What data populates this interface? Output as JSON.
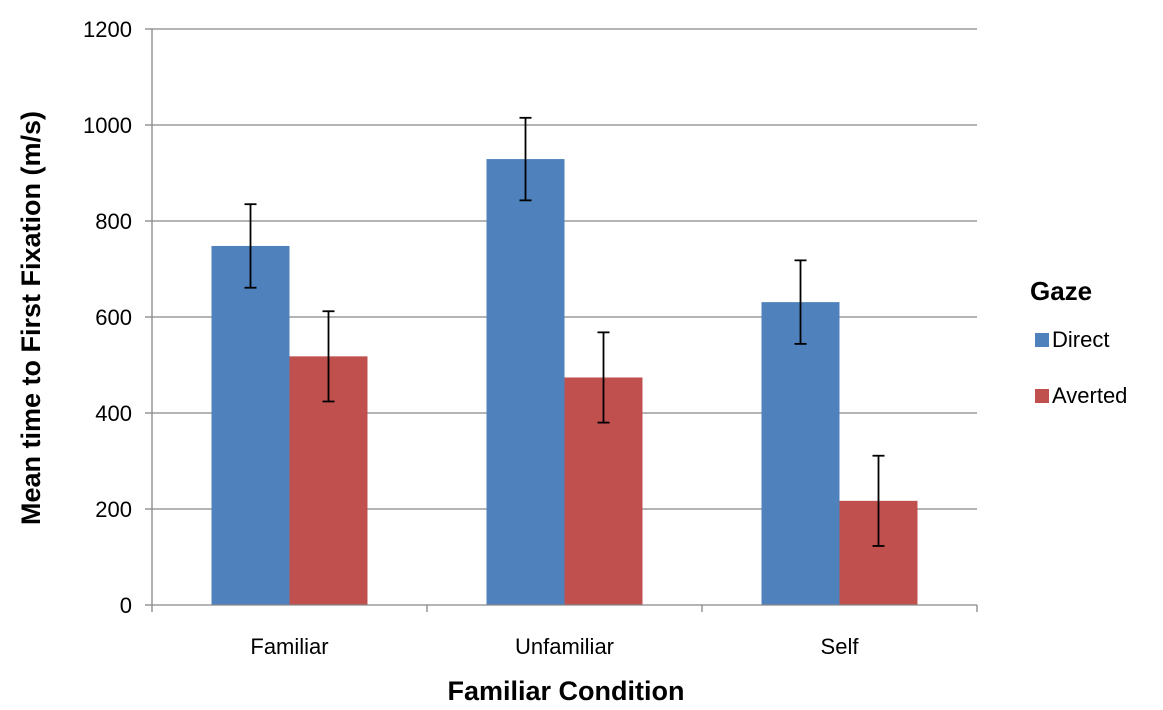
{
  "chart_data": {
    "type": "bar",
    "categories": [
      "Familiar",
      "Unfamiliar",
      "Self"
    ],
    "series": [
      {
        "name": "Direct",
        "color": "#4F81BD",
        "values": [
          748,
          929,
          631
        ],
        "errors": [
          87,
          86,
          87
        ]
      },
      {
        "name": "Averted",
        "color": "#C0504D",
        "values": [
          518,
          474,
          217
        ],
        "errors": [
          94,
          94,
          94
        ]
      }
    ],
    "xlabel": "Familiar Condition",
    "ylabel": "Mean time to First Fixation (m/s)",
    "ylim": [
      0,
      1200
    ],
    "yticks": [
      0,
      200,
      400,
      600,
      800,
      1000,
      1200
    ],
    "grid": true,
    "legend": {
      "title": "Gaze",
      "position": "right"
    }
  }
}
